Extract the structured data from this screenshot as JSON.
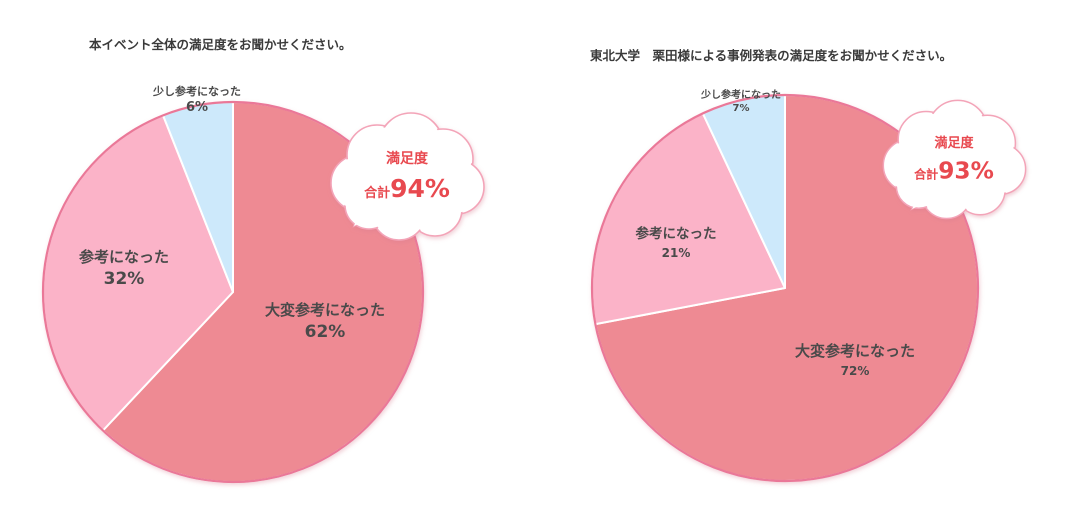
{
  "chart_data": [
    {
      "type": "pie",
      "title": "本イベント全体の満足度をお聞かせください。",
      "slices": [
        {
          "label": "大変参考になった",
          "value": 62,
          "value_text": "62%",
          "color": "#ee8a93"
        },
        {
          "label": "参考になった",
          "value": 32,
          "value_text": "32%",
          "color": "#fbb3c8"
        },
        {
          "label": "少し参考になった",
          "value": 6,
          "value_text": "6%",
          "color": "#cde9fb"
        }
      ],
      "start_angle_deg": 0,
      "direction": "clockwise",
      "callout": {
        "line1": "満足度",
        "prefix": "合計",
        "value": "94%"
      }
    },
    {
      "type": "pie",
      "title": "東北大学　栗田様による事例発表の満足度をお聞かせください。",
      "slices": [
        {
          "label": "大変参考になった",
          "value": 72,
          "value_text": "72%",
          "color": "#ee8a93"
        },
        {
          "label": "参考になった",
          "value": 21,
          "value_text": "21%",
          "color": "#fbb3c8"
        },
        {
          "label": "少し参考になった",
          "value": 7,
          "value_text": "7%",
          "color": "#cde9fb"
        }
      ],
      "start_angle_deg": 0,
      "direction": "clockwise",
      "callout": {
        "line1": "満足度",
        "prefix": "合計",
        "value": "93%"
      }
    }
  ],
  "colors": {
    "outline": "#ea7898",
    "slice_edge": "#ffffff",
    "bubble_fill": "#ffffff",
    "bubble_stroke": "#f3a4b8",
    "callout_text": "#e8484f",
    "label_text": "#4a4a4a",
    "title_text": "#3a3a3a"
  }
}
